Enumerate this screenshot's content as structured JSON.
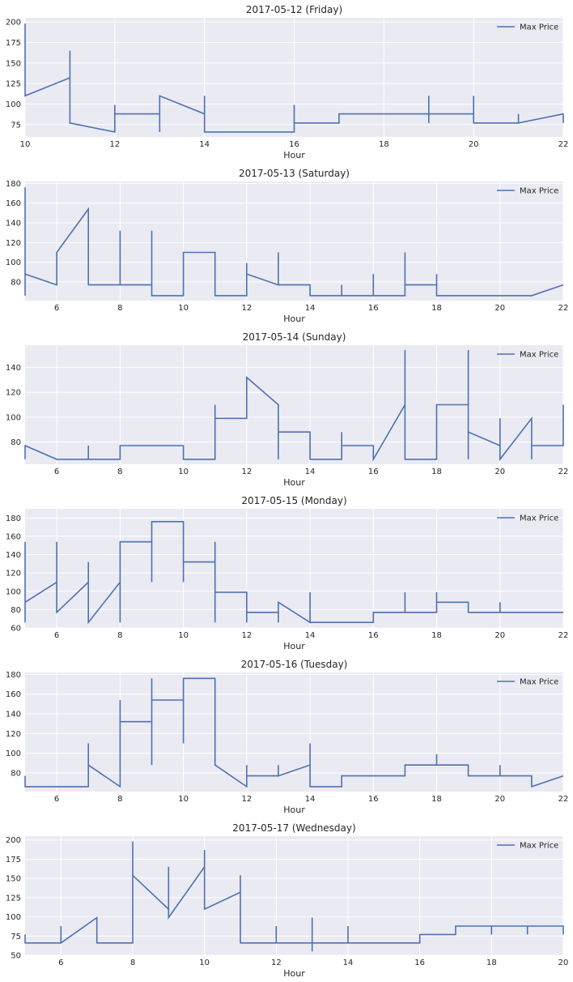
{
  "colors": {
    "line": "#4c72b0",
    "plot_bg": "#eaeaf2",
    "grid": "#ffffff",
    "text": "#262626"
  },
  "chart_data": [
    {
      "type": "line",
      "title": "2017-05-12 (Friday)",
      "xlabel": "Hour",
      "xlim": [
        10,
        22
      ],
      "ylim": [
        60,
        205
      ],
      "xticks": [
        10,
        12,
        14,
        16,
        18,
        20,
        22
      ],
      "yticks": [
        75,
        100,
        125,
        150,
        175,
        200
      ],
      "legend": "upper-right",
      "series": [
        {
          "name": "Max Price",
          "x": [
            10.0,
            10.0,
            10.0,
            11.0,
            11.0,
            11.0,
            11.0,
            11.0,
            12.0,
            12.0,
            12.0,
            13.0,
            13.0,
            13.0,
            13.0,
            14.0,
            14.0,
            14.0,
            14.0,
            16.0,
            16.0,
            16.0,
            17.0,
            17.0,
            19.0,
            19.0,
            19.0,
            19.0,
            20.0,
            20.0,
            20.0,
            21.0,
            21.0,
            21.0,
            22.0,
            22.0
          ],
          "y": [
            198,
            155,
            110,
            132,
            165,
            88,
            77,
            77,
            66,
            99,
            88,
            88,
            66,
            110,
            110,
            88,
            77,
            110,
            66,
            66,
            99,
            77,
            77,
            88,
            88,
            77,
            110,
            88,
            88,
            110,
            77,
            77,
            88,
            77,
            88,
            77
          ]
        }
      ]
    },
    {
      "type": "line",
      "title": "2017-05-13 (Saturday)",
      "xlabel": "Hour",
      "xlim": [
        5,
        22
      ],
      "ylim": [
        61,
        182
      ],
      "xticks": [
        6,
        8,
        10,
        12,
        14,
        16,
        18,
        20,
        22
      ],
      "yticks": [
        80,
        100,
        120,
        140,
        160,
        180
      ],
      "legend": "upper-right",
      "series": [
        {
          "name": "Max Price",
          "x": [
            5.0,
            5.0,
            5.0,
            6.0,
            6.0,
            6.0,
            7.0,
            7.0,
            8.0,
            8.0,
            8.0,
            8.0,
            9.0,
            9.0,
            9.0,
            9.0,
            10.0,
            10.0,
            10.0,
            11.0,
            11.0,
            12.0,
            12.0,
            12.0,
            13.0,
            13.0,
            13.0,
            14.0,
            14.0,
            15.0,
            15.0,
            15.0,
            16.0,
            16.0,
            16.0,
            17.0,
            17.0,
            17.0,
            18.0,
            18.0,
            18.0,
            21.0,
            22.0
          ],
          "y": [
            176,
            66,
            88,
            77,
            88,
            110,
            154,
            77,
            77,
            132,
            77,
            77,
            77,
            132,
            66,
            66,
            66,
            110,
            110,
            110,
            66,
            66,
            99,
            88,
            77,
            110,
            77,
            77,
            66,
            66,
            77,
            66,
            66,
            88,
            66,
            66,
            110,
            77,
            77,
            88,
            66,
            66,
            77
          ]
        }
      ]
    },
    {
      "type": "line",
      "title": "2017-05-14 (Sunday)",
      "xlabel": "Hour",
      "xlim": [
        5,
        22
      ],
      "ylim": [
        62,
        158
      ],
      "xticks": [
        6,
        8,
        10,
        12,
        14,
        16,
        18,
        20,
        22
      ],
      "yticks": [
        80,
        100,
        120,
        140
      ],
      "legend": "upper-right",
      "series": [
        {
          "name": "Max Price",
          "x": [
            5.0,
            5.0,
            6.0,
            7.0,
            7.0,
            7.0,
            8.0,
            8.0,
            8.0,
            10.0,
            10.0,
            11.0,
            11.0,
            11.0,
            12.0,
            12.0,
            13.0,
            13.0,
            13.0,
            14.0,
            14.0,
            15.0,
            15.0,
            15.0,
            16.0,
            16.0,
            17.0,
            17.0,
            17.0,
            18.0,
            18.0,
            18.0,
            19.0,
            19.0,
            19.0,
            19.0,
            20.0,
            20.0,
            20.0,
            21.0,
            21.0,
            21.0,
            22.0,
            22.0
          ],
          "y": [
            66,
            77,
            66,
            66,
            77,
            66,
            66,
            77,
            77,
            77,
            66,
            66,
            110,
            99,
            99,
            132,
            110,
            66,
            88,
            88,
            66,
            66,
            88,
            77,
            77,
            66,
            110,
            154,
            66,
            66,
            110,
            110,
            110,
            154,
            66,
            88,
            77,
            99,
            66,
            99,
            66,
            77,
            77,
            110
          ]
        }
      ]
    },
    {
      "type": "line",
      "title": "2017-05-15 (Monday)",
      "xlabel": "Hour",
      "xlim": [
        5,
        22
      ],
      "ylim": [
        60,
        190
      ],
      "xticks": [
        6,
        8,
        10,
        12,
        14,
        16,
        18,
        20,
        22
      ],
      "yticks": [
        60,
        80,
        100,
        120,
        140,
        160,
        180
      ],
      "legend": "upper-right",
      "series": [
        {
          "name": "Max Price",
          "x": [
            5.0,
            5.0,
            5.0,
            6.0,
            6.0,
            6.0,
            7.0,
            7.0,
            7.0,
            8.0,
            8.0,
            8.0,
            8.0,
            9.0,
            9.0,
            9.0,
            9.0,
            10.0,
            10.0,
            10.0,
            11.0,
            11.0,
            11.0,
            11.0,
            12.0,
            12.0,
            12.0,
            13.0,
            13.0,
            13.0,
            14.0,
            14.0,
            14.0,
            16.0,
            16.0,
            17.0,
            17.0,
            17.0,
            18.0,
            18.0,
            18.0,
            19.0,
            19.0,
            20.0,
            20.0,
            20.0,
            22.0
          ],
          "y": [
            154,
            66,
            88,
            110,
            154,
            77,
            110,
            132,
            66,
            110,
            66,
            132,
            154,
            154,
            110,
            176,
            176,
            176,
            110,
            132,
            132,
            66,
            154,
            99,
            99,
            66,
            77,
            77,
            66,
            88,
            66,
            99,
            66,
            66,
            77,
            77,
            99,
            77,
            77,
            99,
            88,
            88,
            77,
            77,
            88,
            77,
            77
          ]
        }
      ]
    },
    {
      "type": "line",
      "title": "2017-05-16 (Tuesday)",
      "xlabel": "Hour",
      "xlim": [
        5,
        22
      ],
      "ylim": [
        61,
        182
      ],
      "xticks": [
        6,
        8,
        10,
        12,
        14,
        16,
        18,
        20,
        22
      ],
      "yticks": [
        80,
        100,
        120,
        140,
        160,
        180
      ],
      "legend": "upper-right",
      "series": [
        {
          "name": "Max Price",
          "x": [
            5.0,
            5.0,
            7.0,
            7.0,
            7.0,
            8.0,
            8.0,
            8.0,
            9.0,
            9.0,
            9.0,
            9.0,
            10.0,
            10.0,
            10.0,
            11.0,
            11.0,
            12.0,
            12.0,
            12.0,
            13.0,
            13.0,
            13.0,
            14.0,
            14.0,
            14.0,
            15.0,
            15.0,
            17.0,
            17.0,
            18.0,
            18.0,
            18.0,
            19.0,
            19.0,
            20.0,
            20.0,
            20.0,
            21.0,
            21.0,
            22.0
          ],
          "y": [
            77,
            66,
            66,
            110,
            88,
            66,
            154,
            132,
            132,
            176,
            88,
            154,
            154,
            110,
            176,
            176,
            88,
            66,
            88,
            77,
            77,
            88,
            77,
            88,
            110,
            66,
            66,
            77,
            77,
            88,
            88,
            99,
            88,
            88,
            77,
            77,
            88,
            77,
            77,
            66,
            77
          ]
        }
      ]
    },
    {
      "type": "line",
      "title": "2017-05-17 (Wednesday)",
      "xlabel": "Hour",
      "xlim": [
        5,
        20
      ],
      "ylim": [
        50,
        205
      ],
      "xticks": [
        6,
        8,
        10,
        12,
        14,
        16,
        18,
        20
      ],
      "yticks": [
        50,
        75,
        100,
        125,
        150,
        175,
        200
      ],
      "legend": "upper-right",
      "series": [
        {
          "name": "Max Price",
          "x": [
            5.0,
            5.0,
            6.0,
            6.0,
            6.0,
            7.0,
            7.0,
            8.0,
            8.0,
            8.0,
            9.0,
            9.0,
            9.0,
            10.0,
            10.0,
            10.0,
            10.0,
            11.0,
            11.0,
            11.0,
            12.0,
            12.0,
            12.0,
            13.0,
            13.0,
            13.0,
            13.0,
            14.0,
            14.0,
            14.0,
            16.0,
            16.0,
            17.0,
            17.0,
            18.0,
            18.0,
            18.0,
            19.0,
            19.0,
            19.0,
            20.0,
            20.0
          ],
          "y": [
            77,
            66,
            66,
            88,
            66,
            99,
            66,
            66,
            198,
            154,
            110,
            165,
            99,
            165,
            187,
            110,
            110,
            132,
            154,
            66,
            66,
            88,
            66,
            66,
            99,
            55,
            66,
            66,
            88,
            66,
            66,
            77,
            77,
            88,
            88,
            77,
            88,
            88,
            77,
            88,
            88,
            77
          ]
        }
      ]
    }
  ]
}
